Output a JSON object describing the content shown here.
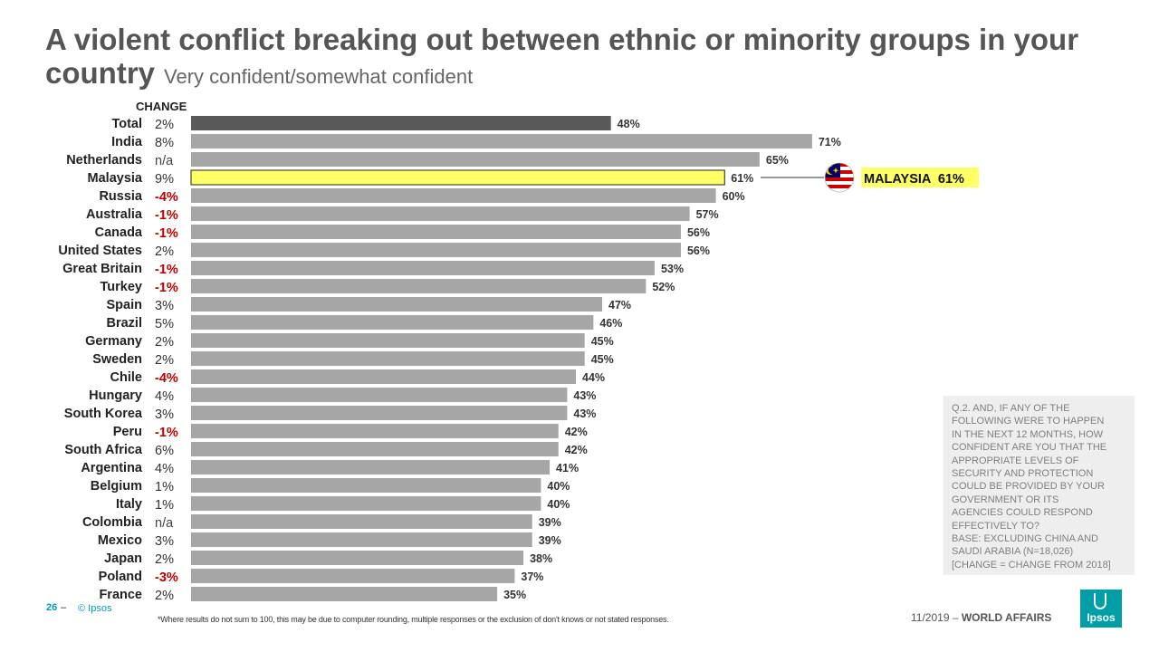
{
  "title": "A violent conflict breaking out between ethnic or minority groups in your country",
  "subtitle": "Very confident/somewhat confident",
  "change_header": "CHANGE",
  "callout": {
    "label": "MALAYSIA  61%",
    "flag": "malaysia-flag-icon"
  },
  "footnote_lines": [
    "Q.2.  AND, IF ANY OF THE",
    "FOLLOWING WERE TO HAPPEN",
    "IN THE NEXT 12 MONTHS, HOW",
    "CONFIDENT ARE YOU THAT THE",
    "APPROPRIATE  LEVELS OF",
    "SECURITY AND PROTECTION",
    "COULD BE PROVIDED BY YOUR",
    "GOVERNMENT OR ITS",
    "AGENCIES COULD RESPOND",
    "EFFECTIVELY  TO?",
    "BASE:  EXCLUDING CHINA AND",
    "SAUDI ARABIA  (N=18,026)",
    "[CHANGE = CHANGE FROM 2018]"
  ],
  "footer": {
    "page_number": "26",
    "separator": "–",
    "copyright": "© Ipsos",
    "disclaimer": "*Where results do not sum to 100, this may be due to computer rounding, multiple responses or the exclusion of don't knows or not stated responses.",
    "date": "11/2019",
    "date_sep": " – ",
    "section": "WORLD AFFAIRS",
    "logo_text": "Ipsos"
  },
  "colors": {
    "bar_default": "#a6a6a6",
    "bar_total": "#595959",
    "bar_highlight": "#ffff66",
    "negative_change": "#c00000",
    "positive_change": "#333333",
    "accent": "#009bb4"
  },
  "chart_data": {
    "type": "bar",
    "orientation": "horizontal",
    "xlim": [
      0,
      100
    ],
    "categories": [
      "Total",
      "India",
      "Netherlands",
      "Malaysia",
      "Russia",
      "Australia",
      "Canada",
      "United States",
      "Great Britain",
      "Turkey",
      "Spain",
      "Brazil",
      "Germany",
      "Sweden",
      "Chile",
      "Hungary",
      "South Korea",
      "Peru",
      "South Africa",
      "Argentina",
      "Belgium",
      "Italy",
      "Colombia",
      "Mexico",
      "Japan",
      "Poland",
      "France"
    ],
    "values": [
      48,
      71,
      65,
      61,
      60,
      57,
      56,
      56,
      53,
      52,
      47,
      46,
      45,
      45,
      44,
      43,
      43,
      42,
      42,
      41,
      40,
      40,
      39,
      39,
      38,
      37,
      35
    ],
    "value_labels": [
      "48%",
      "71%",
      "65%",
      "61%",
      "60%",
      "57%",
      "56%",
      "56%",
      "53%",
      "52%",
      "47%",
      "46%",
      "45%",
      "45%",
      "44%",
      "43%",
      "43%",
      "42%",
      "42%",
      "41%",
      "40%",
      "40%",
      "39%",
      "39%",
      "38%",
      "37%",
      "35%"
    ],
    "change_labels": [
      "2%",
      "8%",
      "n/a",
      "9%",
      "-4%",
      "-1%",
      "-1%",
      "2%",
      "-1%",
      "-1%",
      "3%",
      "5%",
      "2%",
      "2%",
      "-4%",
      "4%",
      "3%",
      "-1%",
      "6%",
      "4%",
      "1%",
      "1%",
      "n/a",
      "3%",
      "2%",
      "-3%",
      "2%"
    ],
    "highlight": "Malaysia",
    "total": "Total"
  }
}
